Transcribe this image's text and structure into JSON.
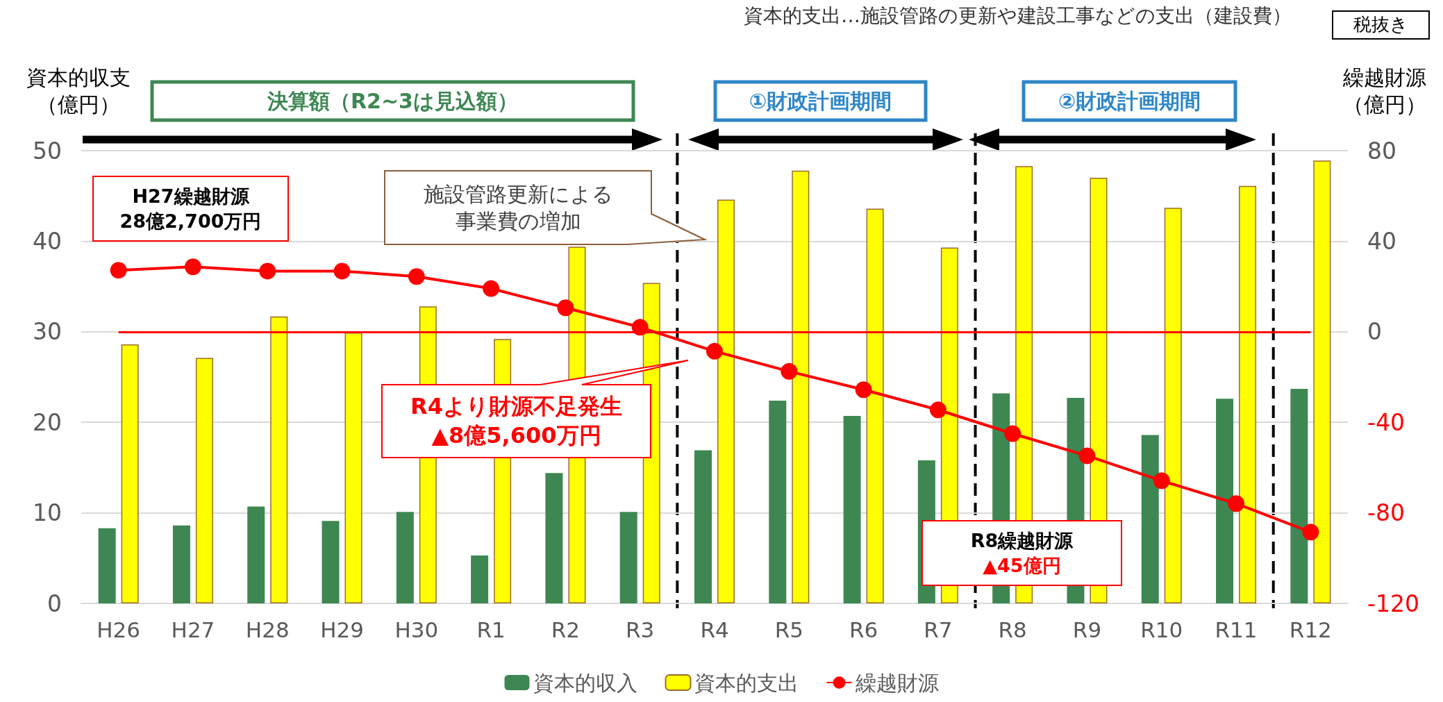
{
  "chart_data": {
    "type": "bar",
    "subtitle": "資本的支出…施設管路の更新や建設工事などの支出（建設費）",
    "ylabel": "資本的収支（億円）",
    "y2label": "繰越財源（億円）",
    "categories": [
      "H26",
      "H27",
      "H28",
      "H29",
      "H30",
      "R1",
      "R2",
      "R3",
      "R4",
      "R5",
      "R6",
      "R7",
      "R8",
      "R9",
      "R10",
      "R11",
      "R12"
    ],
    "series": [
      {
        "name": "資本的収入",
        "color": "#3e8753",
        "values": [
          8.3,
          8.6,
          10.7,
          9.1,
          10.1,
          5.3,
          14.4,
          10.1,
          16.9,
          22.4,
          20.7,
          15.8,
          23.2,
          22.7,
          18.6,
          22.6,
          23.7
        ]
      },
      {
        "name": "資本的支出",
        "color": "#ffff00",
        "values": [
          28.6,
          27.1,
          31.7,
          29.9,
          32.8,
          29.2,
          39.4,
          35.4,
          44.6,
          47.8,
          43.6,
          39.3,
          48.3,
          47.0,
          43.7,
          46.1,
          48.9
        ]
      },
      {
        "name": "繰越財源",
        "type": "line",
        "axis": "y2",
        "color": "#ff0000",
        "values": [
          27.2,
          28.7,
          26.8,
          26.8,
          24.4,
          19.1,
          10.6,
          2.0,
          -8.6,
          -17.5,
          -25.6,
          -34.5,
          -45,
          -54.8,
          -65.8,
          -75.9,
          -88.5
        ]
      }
    ],
    "ylim": [
      0,
      50
    ],
    "yticks": [
      0,
      10,
      20,
      30,
      40,
      50
    ],
    "y2lim": [
      -120,
      80
    ],
    "y2ticks": [
      -120,
      -80,
      -40,
      0,
      40,
      80
    ],
    "ref_lines": [
      {
        "axis": "y2",
        "value": 0,
        "color": "#ff0000"
      }
    ],
    "annotations": [
      "決算額（R2~3は見込額）",
      "①財政計画期間",
      "②財政計画期間",
      "H27繰越財源\n28億2,700万円",
      "施設管路更新による事業費の増加",
      "R4より財源不足発生\n▲8億5,600万円",
      "R8繰越財源\n▲45億円",
      "税抜き"
    ],
    "grid": "y",
    "legend": "bottom",
    "marker": "circle",
    "line_style": "solid"
  }
}
